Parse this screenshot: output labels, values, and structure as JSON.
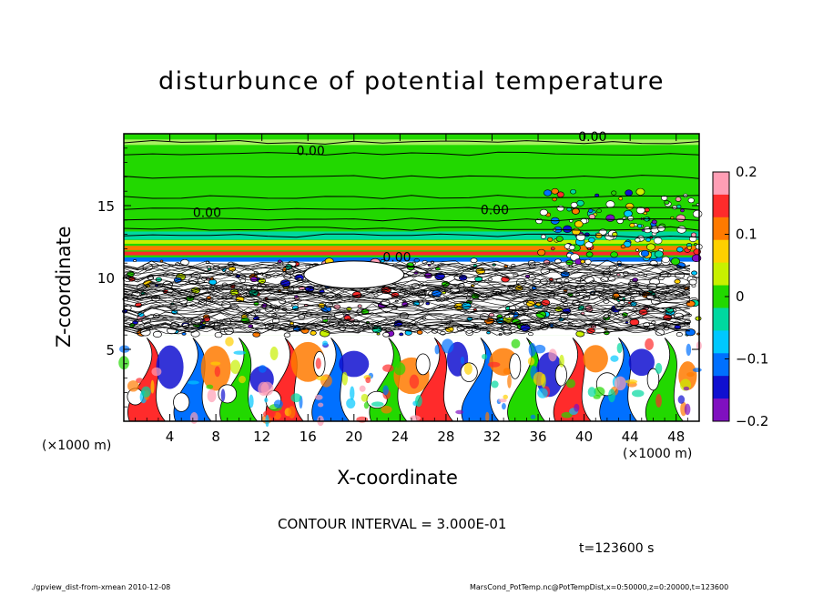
{
  "chart_data": {
    "type": "heatmap",
    "title": "disturbunce of potential temperature",
    "xlabel": "X-coordinate",
    "ylabel": "Z-coordinate",
    "x_unit_left": "(×1000 m)",
    "x_unit_right": "(×1000 m)",
    "xlim": [
      0,
      50
    ],
    "ylim": [
      0,
      20
    ],
    "x_ticks": [
      "4",
      "8",
      "12",
      "16",
      "20",
      "24",
      "28",
      "32",
      "36",
      "40",
      "44",
      "48"
    ],
    "y_ticks": [
      "5",
      "10",
      "15"
    ],
    "colorbar": {
      "range": [
        -0.2,
        0.2
      ],
      "tick_labels": [
        "0.2",
        "0.1",
        "0",
        "−0.1",
        "−0.2"
      ],
      "colors": [
        "#ff9eb5",
        "#ff2b2b",
        "#ff7a00",
        "#ffd000",
        "#c8f000",
        "#22d800",
        "#00d8a0",
        "#00c8ff",
        "#0070ff",
        "#1010d0",
        "#8010c0"
      ]
    },
    "contour_labels": [
      "0.00",
      "0.00",
      "0.00",
      "0.00",
      "0.00"
    ],
    "contour_interval": "CONTOUR INTERVAL = 3.000E-01",
    "time": "t=123600 s"
  },
  "footer": {
    "left": "./gpview_dist-from-xmean   2010-12-08",
    "right": "MarsCond_PotTemp.nc@PotTempDist,x=0:50000,z=0:20000,t=123600"
  }
}
